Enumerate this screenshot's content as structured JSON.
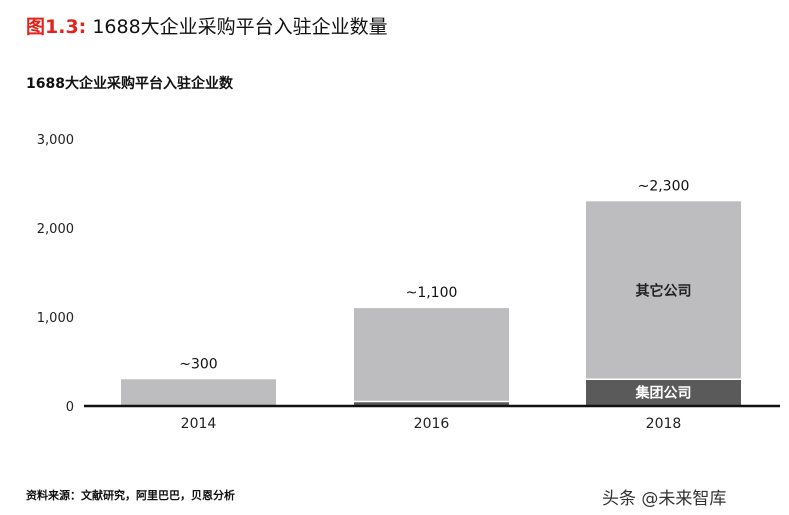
{
  "figure": {
    "number": "图1.3:",
    "title": "1688大企业采购平台入驻企业数量"
  },
  "source": "资料来源：文献研究，阿里巴巴，贝恩分析",
  "watermark": "头条 @未来智库",
  "colors": {
    "accent_red": "#e2231a",
    "other_companies": "#bdbdbf",
    "group_companies": "#5a5a5a",
    "axis": "#111111"
  },
  "chart_data": {
    "type": "bar",
    "stacked": true,
    "title": "1688大企业采购平台入驻企业数",
    "categories": [
      "2014",
      "2016",
      "2018"
    ],
    "series": [
      {
        "name": "集团公司",
        "values": [
          0,
          50,
          300
        ],
        "color": "#5a5a5a"
      },
      {
        "name": "其它公司",
        "values": [
          300,
          1050,
          2000
        ],
        "color": "#bdbdbf"
      }
    ],
    "total_labels": [
      "~300",
      "~1,100",
      "~2,300"
    ],
    "ylim": [
      0,
      3000
    ],
    "yticks": [
      0,
      1000,
      2000,
      3000
    ],
    "ytick_labels": [
      "0",
      "1,000",
      "2,000",
      "3,000"
    ],
    "grid": false,
    "legend": "inline labels inside 2018 bar"
  }
}
